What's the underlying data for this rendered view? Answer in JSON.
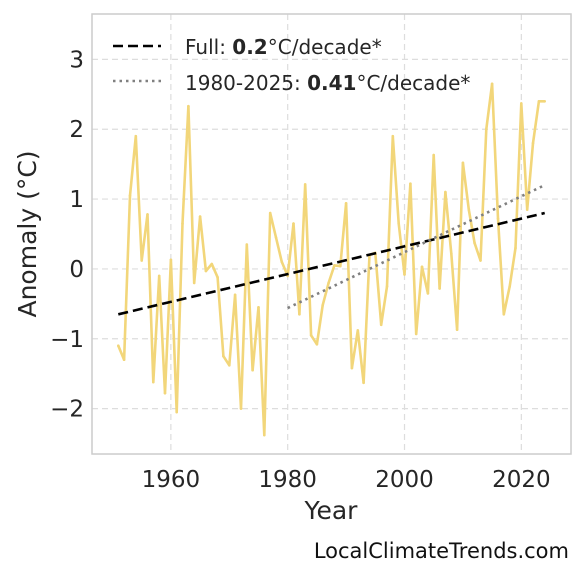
{
  "chart_data": {
    "type": "line",
    "title": "",
    "xlabel": "Year",
    "ylabel": "Anomaly (°C)",
    "xlim": [
      1946.5,
      2028.5
    ],
    "ylim": [
      -2.65,
      3.65
    ],
    "xticks": [
      1960,
      1980,
      2000,
      2020
    ],
    "yticks": [
      -2,
      -1,
      0,
      1,
      2,
      3
    ],
    "ytick_labels": [
      "−2",
      "−1",
      "0",
      "1",
      "2",
      "3"
    ],
    "grid": true,
    "legend_position": "top-left",
    "series": [
      {
        "color": "#f2d67a",
        "x": [
          1951,
          1952,
          1953,
          1954,
          1955,
          1956,
          1957,
          1958,
          1959,
          1960,
          1961,
          1962,
          1963,
          1964,
          1965,
          1966,
          1967,
          1968,
          1969,
          1970,
          1971,
          1972,
          1973,
          1974,
          1975,
          1976,
          1977,
          1978,
          1979,
          1980,
          1981,
          1982,
          1983,
          1984,
          1985,
          1986,
          1987,
          1988,
          1989,
          1990,
          1991,
          1992,
          1993,
          1994,
          1995,
          1996,
          1997,
          1998,
          1999,
          2000,
          2001,
          2002,
          2003,
          2004,
          2005,
          2006,
          2007,
          2008,
          2009,
          2010,
          2011,
          2012,
          2013,
          2014,
          2015,
          2016,
          2017,
          2018,
          2019,
          2020,
          2021,
          2022,
          2023,
          2024
        ],
        "y": [
          -1.1,
          -1.3,
          1.05,
          1.9,
          0.12,
          0.78,
          -1.62,
          -0.1,
          -1.78,
          0.13,
          -2.05,
          0.65,
          2.33,
          -0.2,
          0.75,
          -0.03,
          0.07,
          -0.12,
          -1.25,
          -1.38,
          -0.37,
          -2.0,
          0.35,
          -1.45,
          -0.55,
          -2.38,
          0.8,
          0.45,
          0.1,
          -0.1,
          0.65,
          -0.65,
          1.21,
          -0.95,
          -1.08,
          -0.52,
          -0.2,
          0.05,
          0.04,
          0.94,
          -1.42,
          -0.88,
          -1.63,
          0.2,
          0.23,
          -0.8,
          -0.25,
          1.9,
          0.65,
          -0.08,
          1.22,
          -0.93,
          0.03,
          -0.35,
          1.63,
          -0.28,
          1.1,
          0.22,
          -0.87,
          1.52,
          0.85,
          0.37,
          0.12,
          2.0,
          2.65,
          0.72,
          -0.65,
          -0.25,
          0.3,
          2.37,
          0.85,
          1.8,
          2.4,
          2.4
        ]
      }
    ],
    "trend_full": {
      "x": [
        1951,
        2024
      ],
      "y": [
        -0.65,
        0.8
      ],
      "color": "#000000"
    },
    "trend_recent": {
      "x": [
        1980,
        2024
      ],
      "y": [
        -0.56,
        1.2
      ],
      "color": "#808080"
    },
    "legend": [
      {
        "prefix": "Full: ",
        "value": "0.2",
        "suffix": "°C/decade*",
        "style": "dashed",
        "color": "#000000"
      },
      {
        "prefix": "1980-2025: ",
        "value": "0.41",
        "suffix": "°C/decade*",
        "style": "dotted",
        "color": "#808080"
      }
    ]
  },
  "watermark": "LocalClimateTrends.com"
}
